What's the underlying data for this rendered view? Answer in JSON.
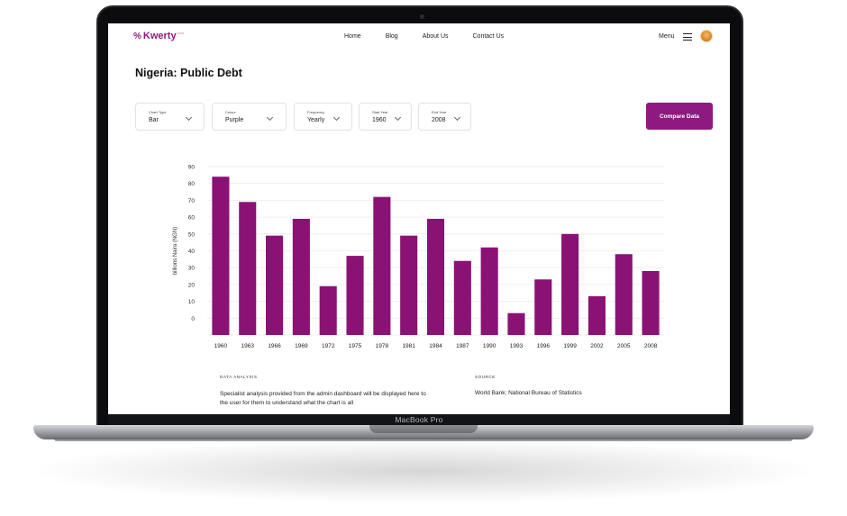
{
  "device": {
    "model_label": "MacBook Pro"
  },
  "nav": {
    "logo_text": "Kwerty",
    "logo_sup": "beta",
    "links": [
      "Home",
      "Blog",
      "About Us",
      "Contact Us"
    ],
    "menu_label": "Menu"
  },
  "page": {
    "title": "Nigeria: Public Debt"
  },
  "filters": [
    {
      "label": "Chart Type",
      "value": "Bar"
    },
    {
      "label": "Colour",
      "value": "Purple"
    },
    {
      "label": "Frequency",
      "value": "Yearly"
    },
    {
      "label": "Start Year",
      "value": "1960"
    },
    {
      "label": "End Year",
      "value": "2008"
    }
  ],
  "compare_button": "Compare Data",
  "colors": {
    "accent": "#8d1a7e",
    "bar": "#8b1275"
  },
  "chart_data": {
    "type": "bar",
    "categories": [
      "1960",
      "1963",
      "1966",
      "1969",
      "1972",
      "1975",
      "1978",
      "1981",
      "1984",
      "1987",
      "1990",
      "1993",
      "1996",
      "1999",
      "2002",
      "2005",
      "2008"
    ],
    "values": [
      84,
      69,
      49,
      59,
      19,
      37,
      72,
      49,
      59,
      34,
      42,
      3,
      23,
      50,
      13,
      38,
      28
    ],
    "ylabel": "billions Naira (NGN)",
    "yticks": [
      0,
      10,
      20,
      30,
      40,
      50,
      60,
      70,
      80,
      90
    ],
    "ylim": [
      -10,
      90
    ],
    "grid": true
  },
  "analysis": {
    "label": "DATA ANALYSIS",
    "text": "Specialist analysis provided from the admin dashboard will be displayed here to the user for them to understand what the chart is all"
  },
  "source": {
    "label": "SOURCE",
    "text": "World Bank; National Bureau of Statistics"
  }
}
